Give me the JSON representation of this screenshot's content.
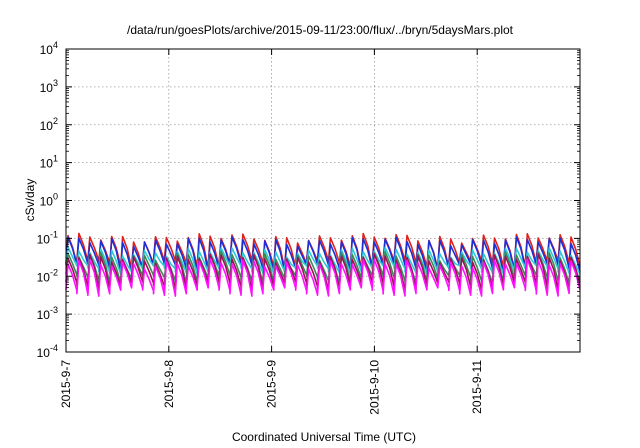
{
  "chart_data": {
    "type": "line",
    "title": "/data/run/goesPlots/archive/2015-09-11/23:00/flux/../bryn/5daysMars.plot",
    "xlabel": "Coordinated Universal Time (UTC)",
    "ylabel": "cSv/day",
    "y_scale": "log",
    "ylim": [
      0.0001,
      10000
    ],
    "y_ticks": [
      {
        "base": "10",
        "exp": "-4"
      },
      {
        "base": "10",
        "exp": "-3"
      },
      {
        "base": "10",
        "exp": "-2"
      },
      {
        "base": "10",
        "exp": "-1"
      },
      {
        "base": "10",
        "exp": "0"
      },
      {
        "base": "10",
        "exp": "1"
      },
      {
        "base": "10",
        "exp": "2"
      },
      {
        "base": "10",
        "exp": "3"
      },
      {
        "base": "10",
        "exp": "4"
      }
    ],
    "xlim": [
      "2015-09-07",
      "2015-09-12"
    ],
    "x_ticks": [
      "2015-9-7",
      "2015-9-8",
      "2015-9-9",
      "2015-9-10",
      "2015-9-11"
    ],
    "grid": true,
    "pattern": {
      "cycles_per_day": 9.4,
      "note_free": true
    },
    "series": [
      {
        "color": "#e0201a",
        "peak": 0.105,
        "trough": 0.022
      },
      {
        "color": "#1e2fd6",
        "peak": 0.085,
        "trough": 0.018
      },
      {
        "color": "#2ec8d8",
        "peak": 0.045,
        "trough": 0.016
      },
      {
        "color": "#3a8a55",
        "peak": 0.035,
        "trough": 0.009
      },
      {
        "color": "#a0105a",
        "peak": 0.03,
        "trough": 0.006
      },
      {
        "color": "#ff10ff",
        "peak": 0.022,
        "trough": 0.0042
      }
    ]
  }
}
